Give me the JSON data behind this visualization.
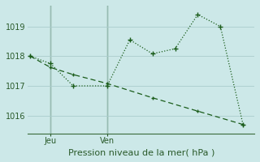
{
  "title": "Pression niveau de la mer( hPa )",
  "bg_color": "#cce8e8",
  "grid_color": "#aacccc",
  "line_color": "#1a5c1a",
  "ylim": [
    1015.4,
    1019.7
  ],
  "yticks": [
    1016,
    1017,
    1018,
    1019
  ],
  "xlim": [
    0,
    10
  ],
  "jeu_x": 1,
  "ven_x": 3.5,
  "vline1_x": 1,
  "vline2_x": 3.5,
  "series1_x": [
    0.1,
    1.0,
    2.0,
    3.5,
    4.5,
    5.5,
    6.5,
    7.5,
    8.5,
    9.5
  ],
  "series1_y": [
    1018.0,
    1017.75,
    1017.0,
    1017.0,
    1018.55,
    1018.08,
    1018.25,
    1019.4,
    1019.0,
    1015.7
  ],
  "series2_x": [
    0.1,
    1.0,
    2.0,
    3.5,
    5.5,
    7.5,
    9.5
  ],
  "series2_y": [
    1018.0,
    1017.62,
    1017.38,
    1017.08,
    1016.6,
    1016.15,
    1015.7
  ],
  "xtick_positions": [
    1.0,
    3.5
  ],
  "xtick_labels": [
    "Jeu",
    "Ven"
  ]
}
